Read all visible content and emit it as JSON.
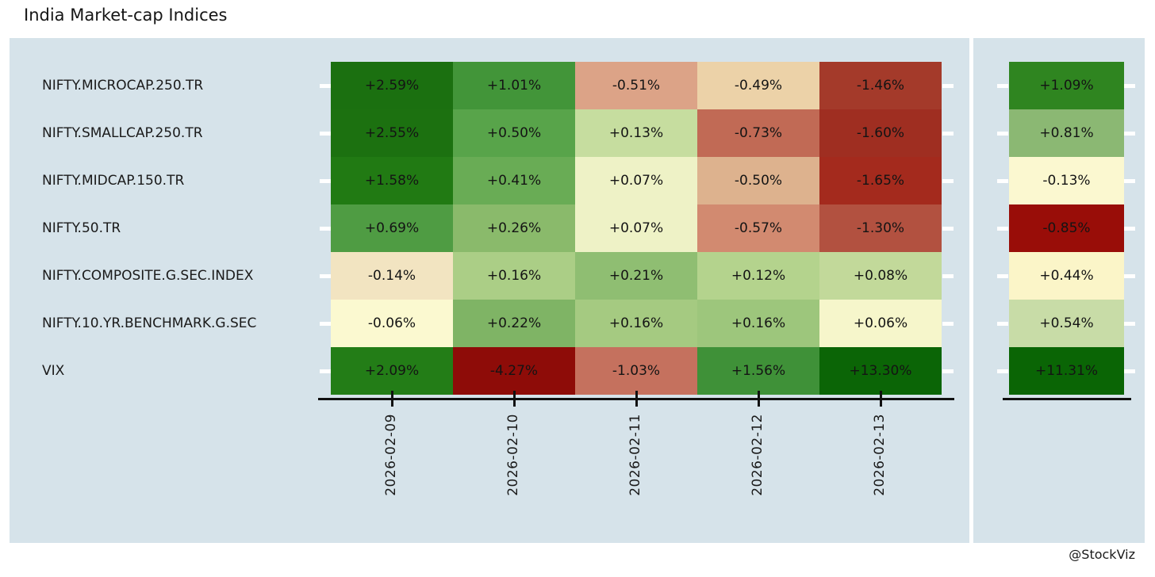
{
  "title": "India Market-cap Indices",
  "watermark": "@StockViz",
  "colors": {
    "figure_background": "#ffffff",
    "panel_background": "#d6e3ea",
    "axis_color": "#111111",
    "tick_color_y": "#ffffff",
    "text_color": "#1a1a1a"
  },
  "chart_data": {
    "type": "heatmap",
    "title": "India Market-cap Indices",
    "colormap": "RdYlGn",
    "values_unit": "percent change",
    "legend_position": "none",
    "grid": false,
    "x_categories": [
      "2026-02-09",
      "2026-02-10",
      "2026-02-11",
      "2026-02-12",
      "2026-02-13"
    ],
    "y_categories": [
      "NIFTY.MICROCAP.250.TR",
      "NIFTY.SMALLCAP.250.TR",
      "NIFTY.MIDCAP.150.TR",
      "NIFTY.50.TR",
      "NIFTY.COMPOSITE.G.SEC.INDEX",
      "NIFTY.10.YR.BENCHMARK.G.SEC",
      "VIX"
    ],
    "rows": [
      {
        "label": "NIFTY.MICROCAP.250.TR",
        "values": [
          2.59,
          1.01,
          -0.51,
          -0.49,
          -1.46
        ],
        "value_labels": [
          "+2.59%",
          "+1.01%",
          "-0.51%",
          "-0.49%",
          "-1.46%"
        ],
        "cell_colors": [
          "#1b7010",
          "#429539",
          "#dca387",
          "#ecd2a8",
          "#a43a2a"
        ],
        "summary_value": 1.09,
        "summary_label": "+1.09%",
        "summary_color": "#2f8520"
      },
      {
        "label": "NIFTY.SMALLCAP.250.TR",
        "values": [
          2.55,
          0.5,
          0.13,
          -0.73,
          -1.6
        ],
        "value_labels": [
          "+2.55%",
          "+0.50%",
          "+0.13%",
          "-0.73%",
          "-1.60%"
        ],
        "cell_colors": [
          "#1c7110",
          "#58a44a",
          "#c6dd9f",
          "#c16a55",
          "#9f2e21"
        ],
        "summary_value": 0.81,
        "summary_label": "+0.81%",
        "summary_color": "#8bb873"
      },
      {
        "label": "NIFTY.MIDCAP.150.TR",
        "values": [
          1.58,
          0.41,
          0.07,
          -0.5,
          -1.65
        ],
        "value_labels": [
          "+1.58%",
          "+0.41%",
          "+0.07%",
          "-0.50%",
          "-1.65%"
        ],
        "cell_colors": [
          "#217a13",
          "#69ac55",
          "#eef2c6",
          "#ddb28e",
          "#a42a1d"
        ],
        "summary_value": -0.13,
        "summary_label": "-0.13%",
        "summary_color": "#fbf8d0"
      },
      {
        "label": "NIFTY.50.TR",
        "values": [
          0.69,
          0.26,
          0.07,
          -0.57,
          -1.3
        ],
        "value_labels": [
          "+0.69%",
          "+0.26%",
          "+0.07%",
          "-0.57%",
          "-1.30%"
        ],
        "cell_colors": [
          "#4f9c43",
          "#8aba6b",
          "#eef2c6",
          "#d28a70",
          "#b25140"
        ],
        "summary_value": -0.85,
        "summary_label": "-0.85%",
        "summary_color": "#990d08"
      },
      {
        "label": "NIFTY.COMPOSITE.G.SEC.INDEX",
        "values": [
          -0.14,
          0.16,
          0.21,
          0.12,
          0.08
        ],
        "value_labels": [
          "-0.14%",
          "+0.16%",
          "+0.21%",
          "+0.12%",
          "+0.08%"
        ],
        "cell_colors": [
          "#f2e4c1",
          "#abce86",
          "#8fbe72",
          "#b4d38d",
          "#c2d99a"
        ],
        "summary_value": 0.44,
        "summary_label": "+0.44%",
        "summary_color": "#fbf5c8"
      },
      {
        "label": "NIFTY.10.YR.BENCHMARK.G.SEC",
        "values": [
          -0.06,
          0.22,
          0.16,
          0.16,
          0.06
        ],
        "value_labels": [
          "-0.06%",
          "+0.22%",
          "+0.16%",
          "+0.16%",
          "+0.06%"
        ],
        "cell_colors": [
          "#fbf9d0",
          "#7fb465",
          "#a5ca81",
          "#9dc67c",
          "#f6f6cb"
        ],
        "summary_value": 0.54,
        "summary_label": "+0.54%",
        "summary_color": "#c8dca7"
      },
      {
        "label": "VIX",
        "values": [
          2.09,
          -4.27,
          -1.03,
          1.56,
          13.3
        ],
        "value_labels": [
          "+2.09%",
          "-4.27%",
          "-1.03%",
          "+1.56%",
          "+13.30%"
        ],
        "cell_colors": [
          "#237d17",
          "#8e0c08",
          "#c5715e",
          "#3f9138",
          "#0b6506"
        ],
        "summary_value": 11.31,
        "summary_label": "+11.31%",
        "summary_color": "#0a6505"
      }
    ]
  }
}
